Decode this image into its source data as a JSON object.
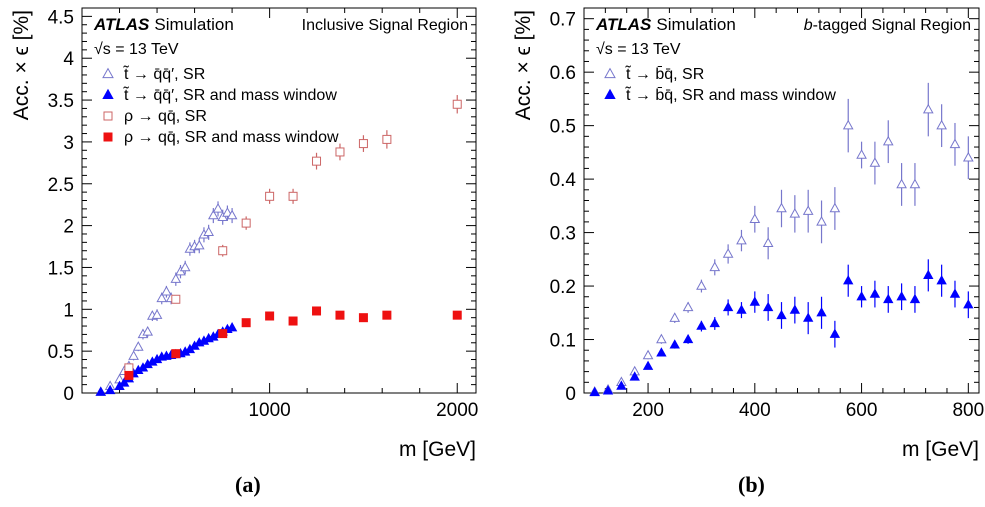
{
  "captions": {
    "a": "(a)",
    "b": "(b)"
  },
  "colors": {
    "blue": "#0000ff",
    "blue_open": "#7777cc",
    "red": "#ee1111",
    "red_open": "#cc6666"
  },
  "chart_data": [
    {
      "type": "scatter",
      "panel": "a",
      "atlas_label": "ATLAS",
      "atlas_sub": "Simulation",
      "region": "Inclusive Signal Region",
      "energy": "√s = 13 TeV",
      "xlabel": "m [GeV]",
      "ylabel": "Acc. × ϵ  [%]",
      "xlim": [
        0,
        2100
      ],
      "ylim": [
        0,
        4.6
      ],
      "xticks": [
        1000,
        2000
      ],
      "yticks": [
        0,
        0.5,
        1,
        1.5,
        2,
        2.5,
        3,
        3.5,
        4,
        4.5
      ],
      "series": [
        {
          "name": "t̃ → q̄q̄′, SR",
          "marker": "open-triangle",
          "color": "#7777cc",
          "x": [
            100,
            150,
            200,
            225,
            250,
            275,
            300,
            325,
            350,
            375,
            400,
            425,
            450,
            475,
            500,
            525,
            550,
            575,
            600,
            625,
            650,
            675,
            700,
            725,
            750,
            775,
            800
          ],
          "y": [
            0.01,
            0.08,
            0.16,
            0.26,
            0.32,
            0.44,
            0.55,
            0.7,
            0.73,
            0.92,
            0.93,
            1.13,
            1.21,
            1.13,
            1.36,
            1.45,
            1.5,
            1.72,
            1.75,
            1.76,
            1.89,
            1.92,
            2.12,
            2.2,
            2.1,
            2.15,
            2.12
          ],
          "err": [
            0.02,
            0.03,
            0.04,
            0.04,
            0.04,
            0.05,
            0.05,
            0.06,
            0.06,
            0.06,
            0.07,
            0.07,
            0.07,
            0.07,
            0.08,
            0.08,
            0.08,
            0.08,
            0.08,
            0.09,
            0.09,
            0.09,
            0.09,
            0.09,
            0.09,
            0.09,
            0.09
          ]
        },
        {
          "name": "t̃ → q̄q̄′, SR and mass window",
          "marker": "filled-triangle",
          "color": "#0000ff",
          "x": [
            100,
            150,
            200,
            225,
            250,
            275,
            300,
            325,
            350,
            375,
            400,
            425,
            450,
            475,
            500,
            525,
            550,
            575,
            600,
            625,
            650,
            675,
            700,
            725,
            750,
            775,
            800
          ],
          "y": [
            0.01,
            0.03,
            0.08,
            0.12,
            0.17,
            0.23,
            0.27,
            0.3,
            0.34,
            0.37,
            0.4,
            0.43,
            0.44,
            0.45,
            0.46,
            0.47,
            0.49,
            0.52,
            0.56,
            0.6,
            0.62,
            0.65,
            0.67,
            0.7,
            0.73,
            0.76,
            0.78
          ],
          "err": [
            0.01,
            0.01,
            0.02,
            0.02,
            0.02,
            0.02,
            0.02,
            0.02,
            0.03,
            0.03,
            0.03,
            0.03,
            0.03,
            0.03,
            0.03,
            0.03,
            0.03,
            0.03,
            0.03,
            0.04,
            0.04,
            0.04,
            0.04,
            0.04,
            0.04,
            0.04,
            0.04
          ]
        },
        {
          "name": "ρ → qq̄, SR",
          "marker": "open-square",
          "color": "#cc6666",
          "x": [
            250,
            500,
            750,
            875,
            1000,
            1125,
            1250,
            1375,
            1500,
            1625,
            2000
          ],
          "y": [
            0.3,
            1.12,
            1.7,
            2.03,
            2.35,
            2.35,
            2.77,
            2.88,
            2.98,
            3.03,
            3.45
          ],
          "err": [
            0.04,
            0.05,
            0.07,
            0.08,
            0.09,
            0.09,
            0.1,
            0.1,
            0.1,
            0.11,
            0.11
          ]
        },
        {
          "name": "ρ → qq̄, SR and mass window",
          "marker": "filled-square",
          "color": "#ee1111",
          "x": [
            250,
            500,
            750,
            875,
            1000,
            1125,
            1250,
            1375,
            1500,
            1625,
            2000
          ],
          "y": [
            0.21,
            0.47,
            0.71,
            0.84,
            0.92,
            0.86,
            0.98,
            0.93,
            0.9,
            0.93,
            0.93
          ],
          "err": [
            0.03,
            0.03,
            0.04,
            0.04,
            0.04,
            0.04,
            0.05,
            0.05,
            0.05,
            0.05,
            0.05
          ]
        }
      ]
    },
    {
      "type": "scatter",
      "panel": "b",
      "atlas_label": "ATLAS",
      "atlas_sub": "Simulation",
      "region_italic": "b",
      "region": "-tagged Signal Region",
      "energy": "√s = 13 TeV",
      "xlabel": "m [GeV]",
      "ylabel": "Acc. × ϵ  [%]",
      "xlim": [
        80,
        820
      ],
      "ylim": [
        0,
        0.72
      ],
      "xticks": [
        200,
        400,
        600,
        800
      ],
      "yticks": [
        0,
        0.1,
        0.2,
        0.3,
        0.4,
        0.5,
        0.6,
        0.7
      ],
      "series": [
        {
          "name": "t̃ → b̄q̄, SR",
          "marker": "open-triangle",
          "color": "#7777cc",
          "x": [
            100,
            125,
            150,
            175,
            200,
            225,
            250,
            275,
            300,
            325,
            350,
            375,
            400,
            425,
            450,
            475,
            500,
            525,
            550,
            575,
            600,
            625,
            650,
            675,
            700,
            725,
            750,
            775,
            800
          ],
          "y": [
            0.002,
            0.006,
            0.02,
            0.04,
            0.07,
            0.1,
            0.14,
            0.16,
            0.2,
            0.235,
            0.26,
            0.285,
            0.325,
            0.28,
            0.345,
            0.335,
            0.34,
            0.32,
            0.345,
            0.5,
            0.445,
            0.43,
            0.47,
            0.39,
            0.39,
            0.53,
            0.5,
            0.465,
            0.44
          ],
          "err": [
            0.003,
            0.003,
            0.005,
            0.006,
            0.007,
            0.008,
            0.009,
            0.01,
            0.012,
            0.015,
            0.018,
            0.02,
            0.025,
            0.03,
            0.035,
            0.035,
            0.04,
            0.04,
            0.04,
            0.05,
            0.025,
            0.04,
            0.04,
            0.04,
            0.04,
            0.05,
            0.04,
            0.04,
            0.04
          ]
        },
        {
          "name": "t̃ → b̄q̄, SR and mass window",
          "marker": "filled-triangle",
          "color": "#0000ff",
          "x": [
            100,
            125,
            150,
            175,
            200,
            225,
            250,
            275,
            300,
            325,
            350,
            375,
            400,
            425,
            450,
            475,
            500,
            525,
            550,
            575,
            600,
            625,
            650,
            675,
            700,
            725,
            750,
            775,
            800
          ],
          "y": [
            0.001,
            0.004,
            0.013,
            0.03,
            0.05,
            0.075,
            0.09,
            0.1,
            0.125,
            0.13,
            0.16,
            0.155,
            0.17,
            0.16,
            0.145,
            0.155,
            0.14,
            0.15,
            0.11,
            0.21,
            0.18,
            0.185,
            0.175,
            0.18,
            0.175,
            0.22,
            0.21,
            0.185,
            0.165
          ],
          "err": [
            0.002,
            0.002,
            0.003,
            0.004,
            0.005,
            0.006,
            0.007,
            0.008,
            0.01,
            0.012,
            0.015,
            0.015,
            0.02,
            0.025,
            0.025,
            0.025,
            0.03,
            0.03,
            0.025,
            0.03,
            0.02,
            0.025,
            0.025,
            0.025,
            0.025,
            0.03,
            0.03,
            0.025,
            0.025
          ]
        }
      ]
    }
  ]
}
